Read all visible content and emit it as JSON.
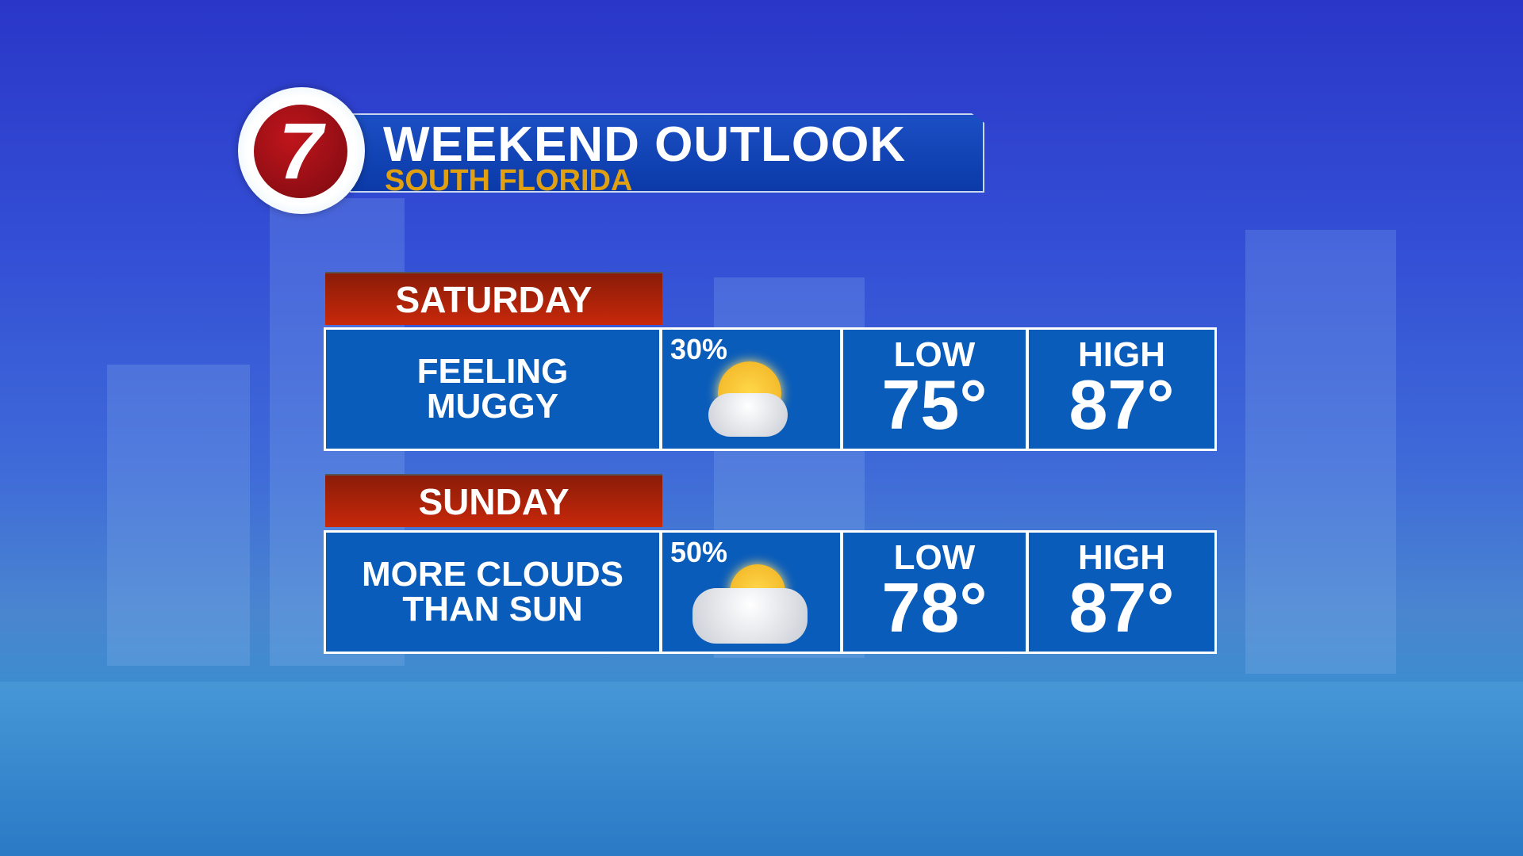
{
  "logo": {
    "text": "7"
  },
  "header": {
    "title": "WEEKEND OUTLOOK",
    "subtitle": "SOUTH FLORIDA"
  },
  "days": [
    {
      "day": "SATURDAY",
      "line1": "FEELING",
      "line2": "MUGGY",
      "rain_chance": "30%",
      "icon": "partly-cloudy-rain-icon",
      "low_label": "LOW",
      "low": "75°",
      "high_label": "HIGH",
      "high": "87°"
    },
    {
      "day": "SUNDAY",
      "line1": "MORE CLOUDS",
      "line2": "THAN SUN",
      "rain_chance": "50%",
      "icon": "mostly-cloudy-rain-icon",
      "low_label": "LOW",
      "low": "78°",
      "high_label": "HIGH",
      "high": "87°"
    }
  ],
  "colors": {
    "day_header": "#b0220a",
    "cell": "#0a5cba",
    "subtitle": "#e0a010"
  }
}
